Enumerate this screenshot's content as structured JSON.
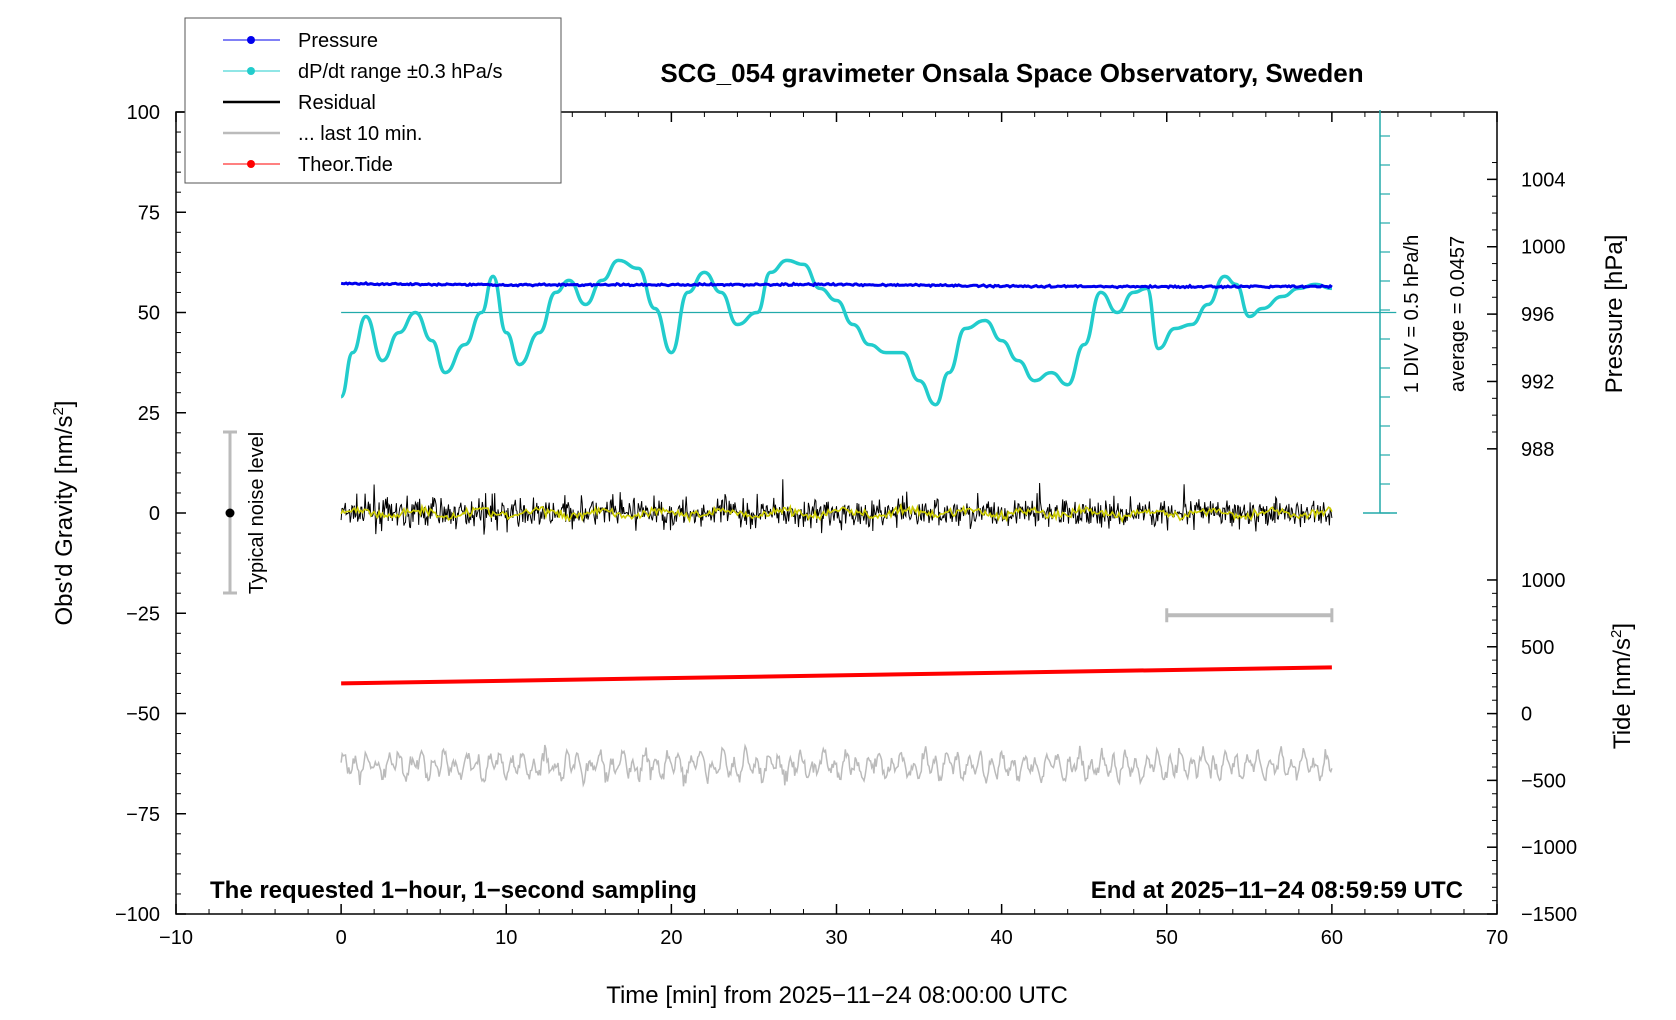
{
  "chart_data": {
    "type": "line",
    "title": "SCG_054 gravimeter Onsala Space Observatory, Sweden",
    "xlabel": "Time [min] from 2025−11−24 08:00:00 UTC",
    "ylabel_main": "Obs'd Gravity [nm/s",
    "ylabel_main_sup": "2",
    "ylabel_main_end": "]",
    "ylabel_pressure": "Pressure [hPa]",
    "ylabel_tide": "Tide [nm/s",
    "ylabel_tide_sup": "2",
    "ylabel_tide_end": "]",
    "xlim": [
      -10,
      70
    ],
    "ylim": [
      -100,
      100
    ],
    "x_ticks": [
      "−10",
      "0",
      "10",
      "20",
      "30",
      "40",
      "50",
      "60",
      "70"
    ],
    "y_ticks": [
      "100",
      "75",
      "50",
      "25",
      "0",
      "−25",
      "−50",
      "−75",
      "−100"
    ],
    "pressure_ticks": [
      "1004",
      "1000",
      "996",
      "992",
      "988"
    ],
    "tide_ticks": [
      "1000",
      "500",
      "0",
      "−500",
      "−1000",
      "−1500"
    ],
    "note_left": "The requested 1−hour, 1−second sampling",
    "note_right": "End at 2025−11−24 08:59:59 UTC",
    "noise_label": "Typical noise level",
    "div_label": "1 DIV = 0.5 hPa/h",
    "average_label": "average = 0.0457",
    "legend": {
      "placement": "top-left",
      "items": [
        {
          "label": "Pressure",
          "color": "#0000ee",
          "marker": true
        },
        {
          "label": "dP/dt range ±0.3 hPa/s",
          "color": "#22cccc",
          "marker": true
        },
        {
          "label": "Residual",
          "color": "#000000",
          "marker": false
        },
        {
          "label": "... last 10 min.",
          "color": "#bbbbbb",
          "marker": false
        },
        {
          "label": "Theor.Tide",
          "color": "#ff0000",
          "marker": true
        }
      ]
    },
    "series": [
      {
        "name": "Pressure",
        "color": "#0000ee",
        "x": [
          0,
          10,
          20,
          30,
          40,
          50,
          60
        ],
        "y": [
          57.2,
          56.9,
          56.9,
          57.0,
          56.6,
          56.4,
          56.5
        ]
      },
      {
        "name": "dP/dt range ±0.3 hPa/s",
        "color": "#22cccc",
        "x": [
          0,
          0.7,
          1.5,
          2.5,
          3.5,
          4.5,
          5.5,
          6.3,
          7.5,
          8.5,
          9.2,
          10,
          10.8,
          12,
          13,
          13.8,
          14.8,
          15.8,
          16.8,
          18,
          19,
          20,
          21,
          22,
          23,
          24,
          25.2,
          26,
          27,
          28,
          29,
          30,
          31,
          32,
          33,
          34,
          35,
          36,
          36.8,
          37.8,
          39,
          40,
          41,
          42,
          43,
          44,
          45,
          46,
          47,
          48,
          48.8,
          49.5,
          50.5,
          51.5,
          52.5,
          53.5,
          54.2,
          55,
          55.8,
          57,
          58,
          59,
          60
        ],
        "y": [
          29,
          40,
          49,
          38,
          45,
          50,
          43,
          35,
          42,
          50,
          59,
          45,
          37,
          45,
          55,
          58,
          52,
          58,
          63,
          61,
          51,
          40,
          55,
          60,
          55,
          47,
          50,
          60,
          63,
          62,
          56,
          53,
          47,
          42,
          40,
          40,
          33,
          27,
          35,
          46,
          48,
          43,
          38,
          33,
          35,
          32,
          42,
          55,
          50,
          55,
          56,
          41,
          46,
          47,
          52,
          59,
          57,
          49,
          51,
          54,
          56,
          57,
          56
        ]
      },
      {
        "name": "Residual",
        "color": "#000000",
        "x": [
          0,
          60
        ],
        "y": [
          0,
          0
        ]
      },
      {
        "name": "... last 10 min.",
        "color": "#bbbbbb",
        "x": [
          0,
          60
        ],
        "y": [
          -63,
          -63
        ]
      },
      {
        "name": "Theor.Tide",
        "color": "#ff0000",
        "x": [
          0,
          60
        ],
        "y": [
          -42.5,
          -38.5
        ]
      }
    ],
    "colors": {
      "smoothed_residual": "#cccc00",
      "dpdt_average_line": "#22aaaa",
      "noise_bar": "#bbbbbb"
    }
  }
}
